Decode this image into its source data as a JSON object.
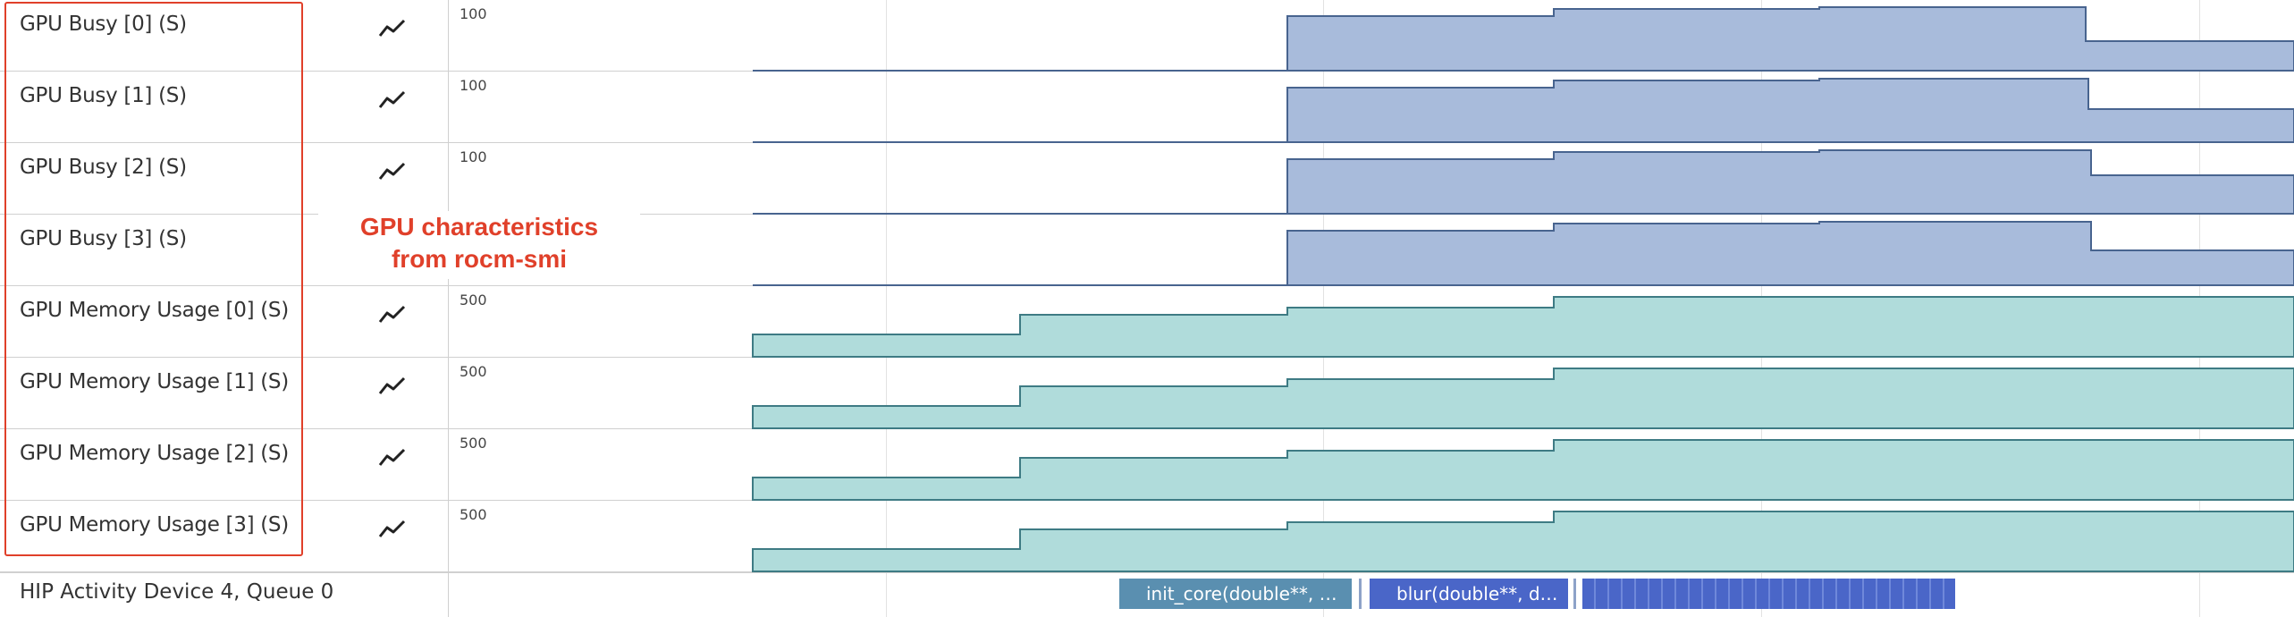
{
  "tracks": [
    {
      "title": "GPU Busy [0] (S)",
      "max_label": "100",
      "kind": "busy",
      "steps": [
        [
          0,
          0
        ],
        [
          0,
          1
        ],
        [
          0,
          1
        ],
        [
          0,
          1
        ],
        [
          0,
          1
        ],
        [
          1,
          1
        ]
      ],
      "levels": [
        0.95,
        0.98,
        0.98,
        0.4
      ]
    },
    {
      "title": "GPU Busy [1] (S)",
      "max_label": "100",
      "kind": "busy",
      "levels": [
        0.95,
        0.98,
        0.98,
        0.4
      ]
    },
    {
      "title": "GPU Busy [2] (S)",
      "max_label": "100",
      "kind": "busy",
      "levels": [
        0.95,
        0.98,
        0.98,
        0.4
      ]
    },
    {
      "title": "GPU Busy [3] (S)",
      "max_label": "",
      "kind": "busy",
      "levels": [
        0.95,
        0.98,
        0.98,
        0.4
      ]
    },
    {
      "title": "GPU Memory Usage [0] (S)",
      "max_label": "500",
      "kind": "mem"
    },
    {
      "title": "GPU Memory Usage [1] (S)",
      "max_label": "500",
      "kind": "mem"
    },
    {
      "title": "GPU Memory Usage [2] (S)",
      "max_label": "500",
      "kind": "mem"
    },
    {
      "title": "GPU Memory Usage [3] (S)",
      "max_label": "500",
      "kind": "mem"
    }
  ],
  "annotation": {
    "line1": "GPU characteristics",
    "line2": "from rocm-smi",
    "color": "#e0402a"
  },
  "hip": {
    "title": "HIP Activity Device 4, Queue 0",
    "slice_init": "init_core(double**, …",
    "slice_blur": "blur(double**, d…",
    "init_color": "#5a8fb0",
    "blur_color": "#4a66c8"
  },
  "colors": {
    "busy_fill": "#a8bbdb",
    "busy_line": "#48648f",
    "mem_fill": "#b0dcdb",
    "mem_line": "#3e7b84"
  }
}
